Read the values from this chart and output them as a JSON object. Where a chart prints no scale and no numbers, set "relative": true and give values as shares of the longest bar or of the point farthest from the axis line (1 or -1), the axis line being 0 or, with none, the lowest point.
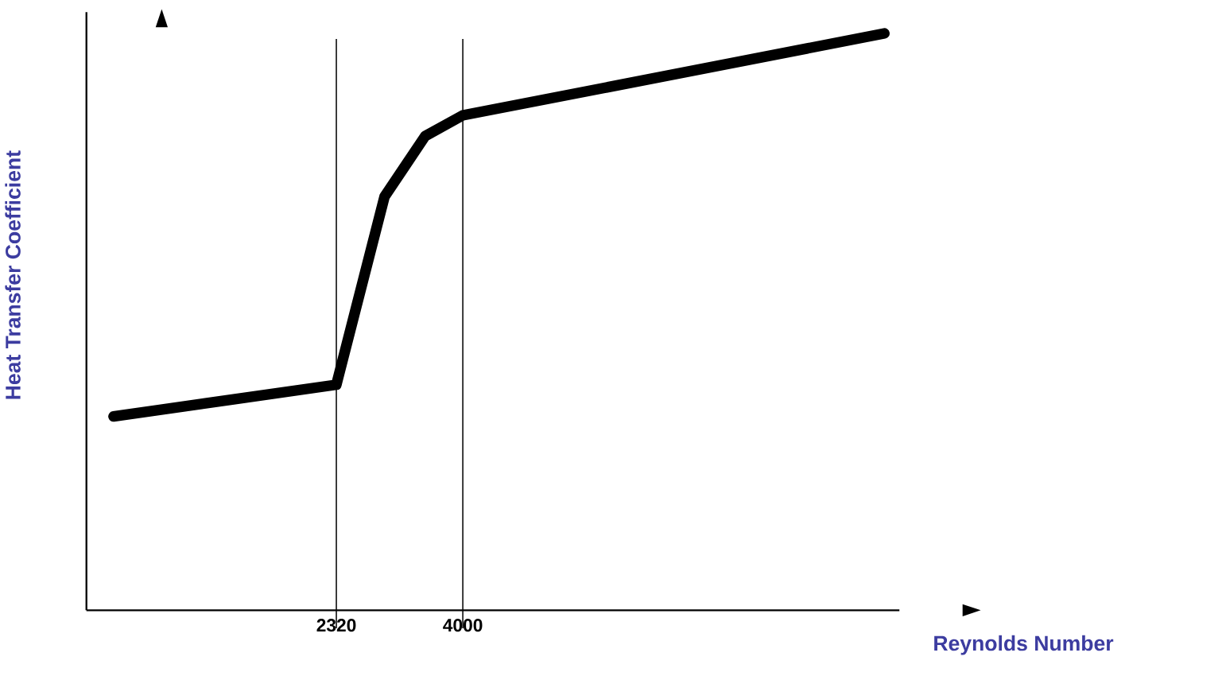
{
  "chart_data": {
    "type": "line",
    "xlabel": "Reynolds Number",
    "ylabel": "Heat Transfer Coefficient",
    "relative": true,
    "xlim": [
      -1000,
      9800
    ],
    "xticks": [
      2320,
      4000
    ],
    "x": [
      -640,
      2320,
      2960,
      3500,
      4000,
      9600
    ],
    "series": [
      {
        "color": "#000000",
        "values": [
          0.336,
          0.391,
          0.717,
          0.822,
          0.858,
          1.0
        ]
      }
    ],
    "ref_lines": [
      {
        "axis": "x",
        "value": 2320,
        "color": "#000000"
      },
      {
        "axis": "x",
        "value": 4000,
        "color": "#000000"
      }
    ],
    "marker": "none",
    "line_style": "solid"
  }
}
